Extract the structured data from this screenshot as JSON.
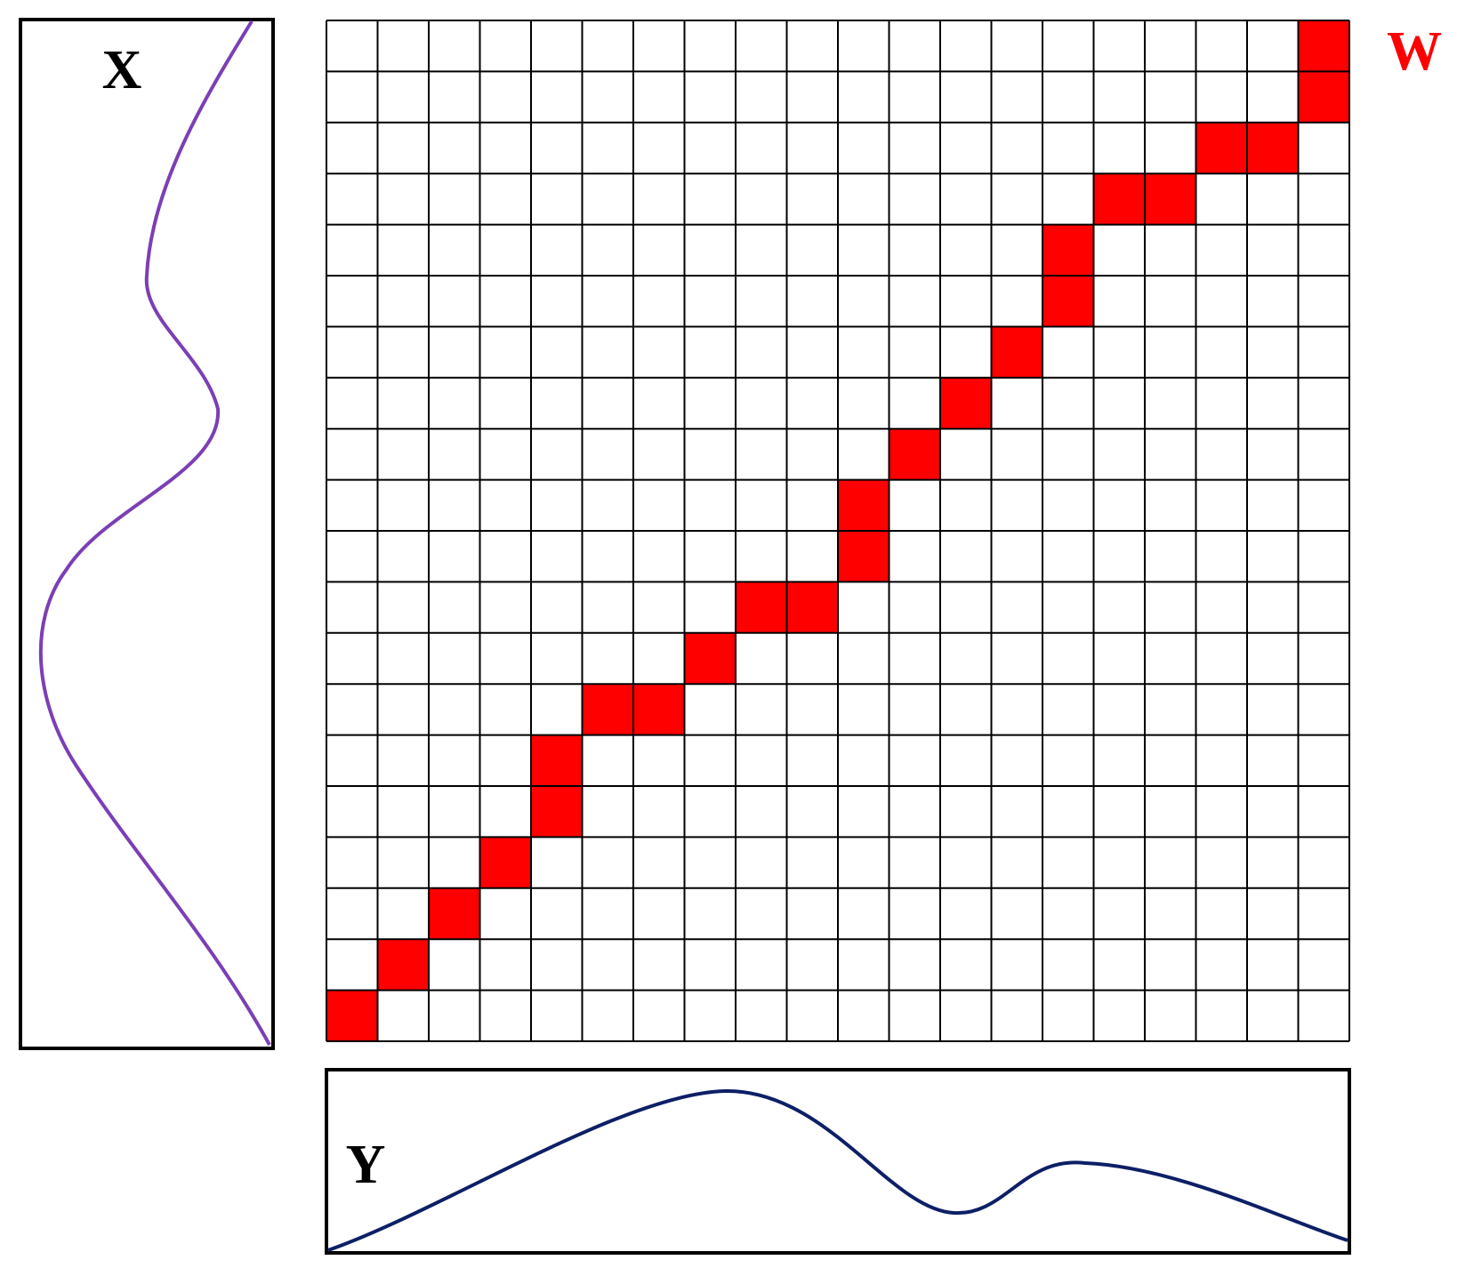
{
  "labels": {
    "x_signal": "X",
    "y_signal": "Y",
    "warping_path": "W"
  },
  "grid": {
    "rows": 20,
    "cols": 20,
    "path_cells": [
      [
        0,
        0
      ],
      [
        1,
        1
      ],
      [
        2,
        2
      ],
      [
        3,
        3
      ],
      [
        4,
        4
      ],
      [
        4,
        5
      ],
      [
        5,
        6
      ],
      [
        6,
        6
      ],
      [
        7,
        7
      ],
      [
        8,
        8
      ],
      [
        9,
        8
      ],
      [
        10,
        9
      ],
      [
        10,
        10
      ],
      [
        11,
        11
      ],
      [
        12,
        12
      ],
      [
        13,
        13
      ],
      [
        14,
        14
      ],
      [
        14,
        15
      ],
      [
        15,
        16
      ],
      [
        16,
        16
      ],
      [
        17,
        17
      ],
      [
        18,
        17
      ],
      [
        19,
        19
      ],
      [
        19,
        18
      ]
    ]
  },
  "colors": {
    "path_cell": "#ff0000",
    "grid_line": "#000000",
    "x_curve": "#7b3fb5",
    "y_curve": "#0d1f66",
    "warping_label": "#ff0000",
    "text": "#000000"
  }
}
